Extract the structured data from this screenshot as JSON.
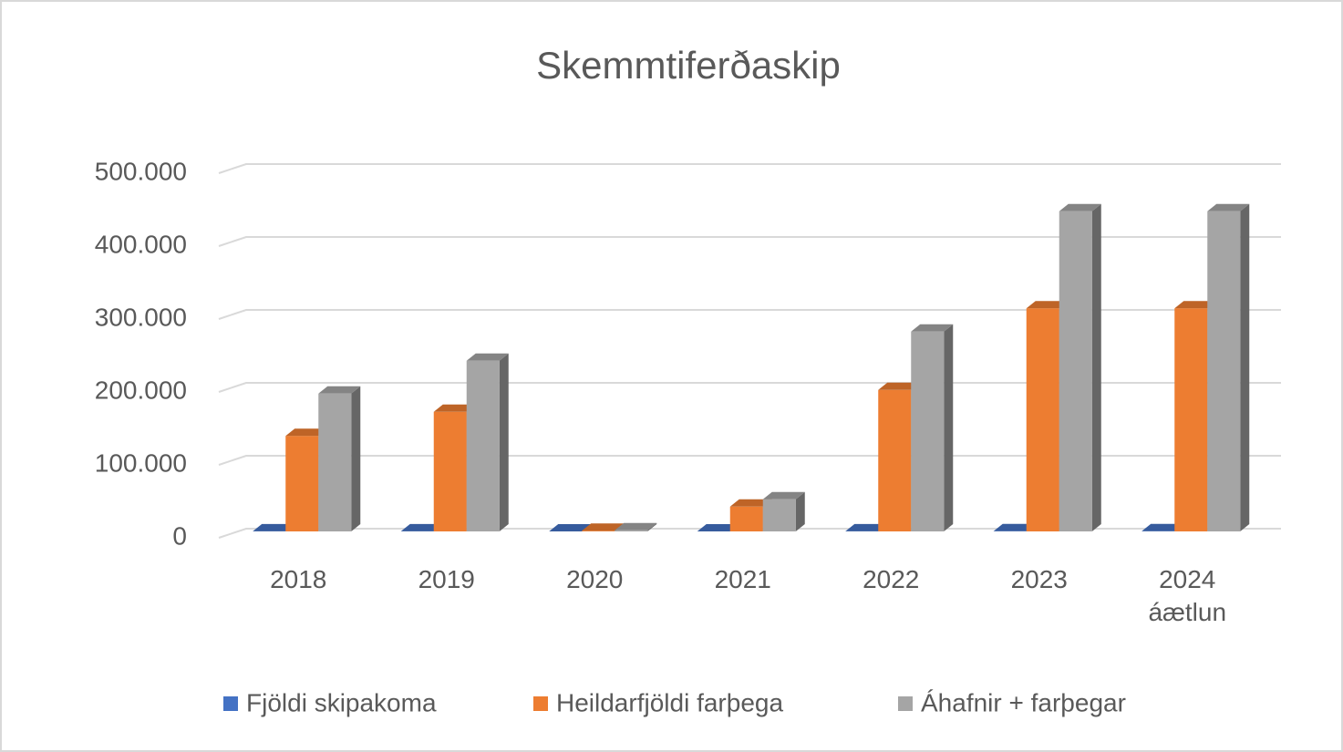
{
  "chart_data": {
    "type": "bar3d",
    "title": "Skemmtiferðaskip",
    "categories": [
      "2018",
      "2019",
      "2020",
      "2021",
      "2022",
      "2023",
      "2024 áætlun"
    ],
    "series": [
      {
        "name": "Fjöldi skipakoma",
        "color": "#4472c4",
        "values": [
          167,
          190,
          3,
          37,
          190,
          260,
          260
        ]
      },
      {
        "name": "Heildarfjöldi farþega",
        "color": "#ed7d31",
        "values": [
          131000,
          164000,
          1000,
          34000,
          194000,
          306000,
          306000
        ]
      },
      {
        "name": "Áhafnir + farþegar",
        "color": "#a5a5a5",
        "values": [
          189000,
          234000,
          1500,
          44000,
          274000,
          439000,
          439000
        ]
      }
    ],
    "ylim": [
      0,
      500000
    ],
    "yticks": [
      {
        "value": 0,
        "label": "0"
      },
      {
        "value": 100000,
        "label": "100.000"
      },
      {
        "value": 200000,
        "label": "200.000"
      },
      {
        "value": 300000,
        "label": "300.000"
      },
      {
        "value": 400000,
        "label": "400.000"
      },
      {
        "value": 500000,
        "label": "500.000"
      }
    ],
    "grid": true,
    "legend": "bottom"
  }
}
